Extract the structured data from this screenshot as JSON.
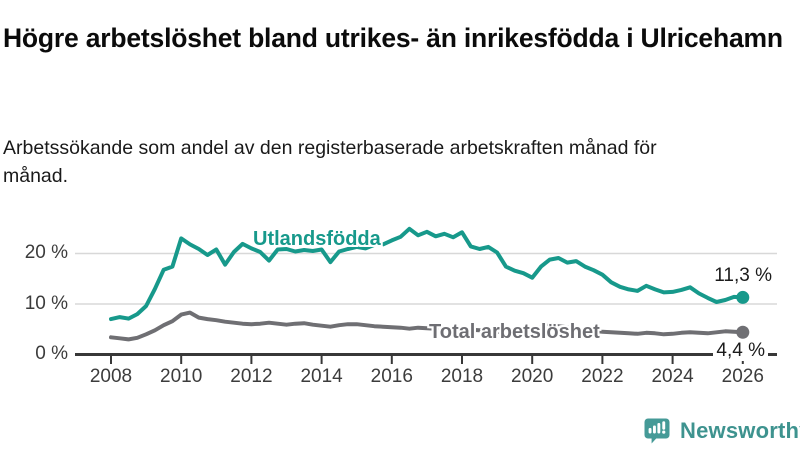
{
  "chart_data": {
    "type": "line",
    "title": "Högre arbetslöshet bland utrikes- än inrikesfödda i Ulricehamn",
    "subtitle": "Arbetssökande som andel av den registerbaserade arbetskraften månad för månad.",
    "x_start": 2008,
    "x_step": 0.25,
    "x_range": [
      2008,
      2026
    ],
    "ylim": [
      0,
      27
    ],
    "grid": "horizontal",
    "gridline_color": "#d8d8d8",
    "axis_color": "#383838",
    "xticks": [
      2008,
      2010,
      2012,
      2014,
      2016,
      2018,
      2020,
      2022,
      2024,
      2026
    ],
    "yticks": [
      {
        "value": 0,
        "label": "0 %"
      },
      {
        "value": 10,
        "label": "10 %"
      },
      {
        "value": 20,
        "label": "20 %"
      }
    ],
    "series": [
      {
        "name": "Utlandsfödda",
        "color": "#17998b",
        "end_label": "11,3 %",
        "end_value": 11.3,
        "values": [
          7.0,
          7.4,
          7.1,
          8.0,
          9.6,
          13.0,
          16.8,
          17.4,
          23.0,
          21.8,
          20.9,
          19.7,
          20.8,
          17.8,
          20.3,
          21.9,
          21.0,
          20.3,
          18.6,
          20.8,
          20.9,
          20.4,
          20.7,
          20.5,
          20.8,
          18.3,
          20.4,
          20.9,
          21.3,
          21.0,
          21.7,
          21.8,
          22.6,
          23.3,
          24.9,
          23.6,
          24.3,
          23.4,
          23.9,
          23.2,
          24.2,
          21.4,
          20.9,
          21.3,
          20.2,
          17.4,
          16.6,
          16.1,
          15.2,
          17.4,
          18.8,
          19.1,
          18.2,
          18.5,
          17.4,
          16.7,
          15.8,
          14.3,
          13.4,
          12.9,
          12.6,
          13.6,
          12.9,
          12.3,
          12.4,
          12.8,
          13.3,
          12.1,
          11.2,
          10.4,
          10.8,
          11.4,
          11.3
        ]
      },
      {
        "name": "Total arbetslöshet",
        "color": "#6f6f73",
        "end_label": "4,4 %",
        "end_value": 4.4,
        "values": [
          3.4,
          3.2,
          3.0,
          3.3,
          4.0,
          4.8,
          5.8,
          6.6,
          7.9,
          8.3,
          7.3,
          7.0,
          6.8,
          6.5,
          6.3,
          6.1,
          6.0,
          6.1,
          6.3,
          6.1,
          5.9,
          6.1,
          6.2,
          5.9,
          5.7,
          5.5,
          5.8,
          6.0,
          6.0,
          5.8,
          5.6,
          5.5,
          5.4,
          5.3,
          5.1,
          5.3,
          5.2,
          5.1,
          5.3,
          5.2,
          5.0,
          4.9,
          4.8,
          4.7,
          4.5,
          4.4,
          4.6,
          4.8,
          5.0,
          5.4,
          5.8,
          5.6,
          5.4,
          5.2,
          4.9,
          4.7,
          4.5,
          4.4,
          4.3,
          4.2,
          4.1,
          4.3,
          4.2,
          4.0,
          4.1,
          4.3,
          4.4,
          4.3,
          4.2,
          4.4,
          4.6,
          4.5,
          4.4
        ]
      }
    ]
  },
  "footer": {
    "brand": "Newsworthy",
    "logo_icon": "bar-chart-speech-bubble-icon",
    "logo_color": "#459a97"
  }
}
